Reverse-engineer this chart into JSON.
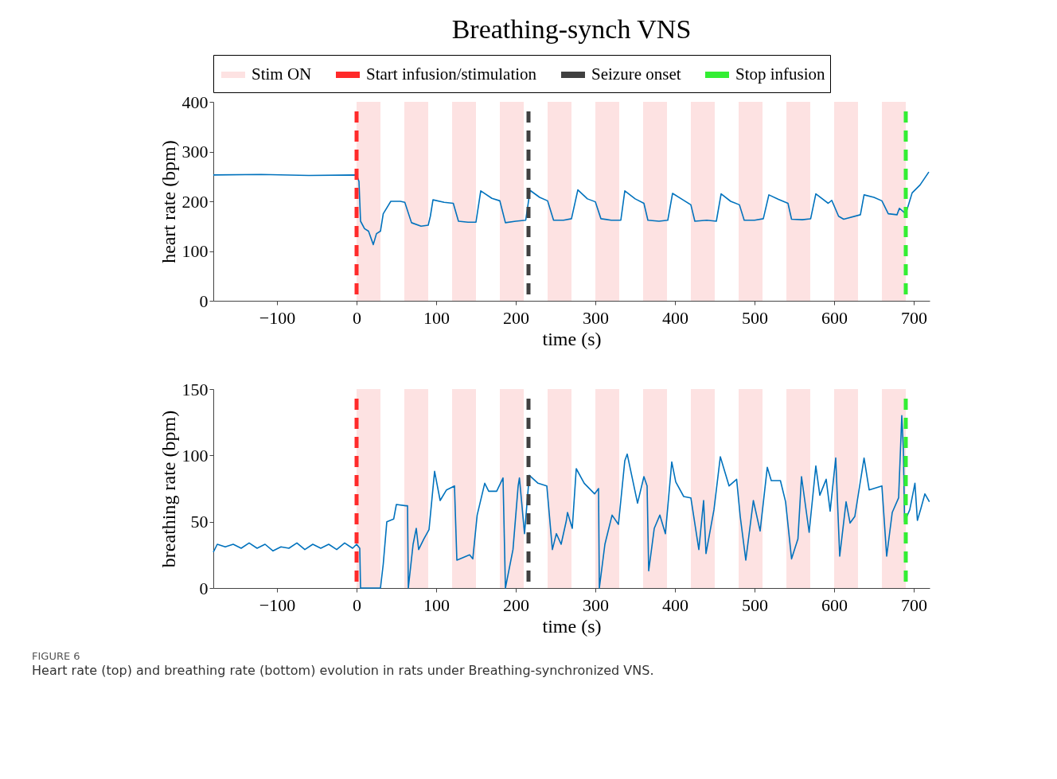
{
  "chart_data": [
    {
      "type": "line",
      "title": "Breathing-synch VNS",
      "xlabel": "time (s)",
      "ylabel": "heart rate (bpm)",
      "x": [
        -180,
        -120,
        -60,
        0,
        3,
        5,
        10,
        15,
        21,
        25,
        30,
        33.5,
        43,
        55,
        60.6,
        69,
        81,
        90,
        92.7,
        96,
        110,
        121.5,
        128,
        140,
        150,
        156,
        170,
        180,
        187,
        200,
        212.5,
        218,
        230,
        240,
        247.5,
        260,
        270,
        278,
        290,
        300,
        307,
        320,
        332,
        337,
        350,
        361,
        366,
        380,
        391,
        397,
        410,
        420,
        425,
        440,
        452,
        458,
        470,
        481,
        487,
        500,
        511,
        518,
        530,
        542,
        546.5,
        560,
        570.5,
        577,
        592.5,
        597,
        605.6,
        612,
        633,
        637.6,
        650,
        660,
        668,
        679,
        682,
        690,
        698,
        708,
        719
      ],
      "series": [
        {
          "color": "#0072bd",
          "values": [
            253,
            254,
            252,
            253,
            240,
            160,
            145,
            140,
            113,
            135,
            140,
            175,
            200,
            200,
            198,
            157,
            150,
            152,
            170,
            203,
            198,
            196,
            160,
            158,
            158,
            221,
            206,
            201,
            157,
            160,
            162,
            222,
            208,
            201,
            162,
            162,
            165,
            223,
            205,
            199,
            165,
            162,
            162,
            221,
            205,
            196,
            162,
            160,
            162,
            216,
            203,
            193,
            160,
            162,
            160,
            215,
            200,
            193,
            162,
            162,
            165,
            213,
            204,
            196,
            164,
            163,
            165,
            215,
            196,
            202,
            170,
            164,
            173,
            213,
            208,
            201,
            175,
            173,
            186,
            175,
            217,
            233,
            259
          ]
        }
      ],
      "xlim": [
        -180,
        720
      ],
      "xticks": [
        -100,
        0,
        100,
        200,
        300,
        400,
        500,
        600,
        700
      ],
      "ylim": [
        0,
        400
      ],
      "yticks": [
        0,
        100,
        200,
        300,
        400
      ],
      "bands": [
        {
          "axis": "x",
          "from": 0,
          "to": 30,
          "label": "Stim ON",
          "color": "#fde2e2"
        },
        {
          "axis": "x",
          "from": 60,
          "to": 90,
          "color": "#fde2e2"
        },
        {
          "axis": "x",
          "from": 120,
          "to": 150,
          "color": "#fde2e2"
        },
        {
          "axis": "x",
          "from": 180,
          "to": 210,
          "color": "#fde2e2"
        },
        {
          "axis": "x",
          "from": 240,
          "to": 270,
          "color": "#fde2e2"
        },
        {
          "axis": "x",
          "from": 300,
          "to": 330,
          "color": "#fde2e2"
        },
        {
          "axis": "x",
          "from": 360,
          "to": 390,
          "color": "#fde2e2"
        },
        {
          "axis": "x",
          "from": 420,
          "to": 450,
          "color": "#fde2e2"
        },
        {
          "axis": "x",
          "from": 480,
          "to": 510,
          "color": "#fde2e2"
        },
        {
          "axis": "x",
          "from": 540,
          "to": 570,
          "color": "#fde2e2"
        },
        {
          "axis": "x",
          "from": 600,
          "to": 630,
          "color": "#fde2e2"
        },
        {
          "axis": "x",
          "from": 660,
          "to": 690,
          "color": "#fde2e2"
        }
      ],
      "ref_lines": [
        {
          "axis": "x",
          "value": 0,
          "label": "Start infusion/stimulation",
          "color": "#ff2a2a",
          "line_style": "dashed"
        },
        {
          "axis": "x",
          "value": 216,
          "label": "Seizure onset",
          "color": "#404040",
          "line_style": "dashed"
        },
        {
          "axis": "x",
          "value": 690,
          "label": "Stop infusion",
          "color": "#33ee33",
          "line_style": "dashed"
        }
      ],
      "legend": "top",
      "grid": false
    },
    {
      "type": "line",
      "xlabel": "time (s)",
      "ylabel": "breathing rate (bpm)",
      "x": [
        -180,
        -175,
        -165,
        -155,
        -145,
        -135,
        -125,
        -115,
        -105,
        -95,
        -85,
        -75,
        -65,
        -55,
        -45,
        -35,
        -25,
        -15,
        -5,
        0,
        4,
        5,
        30,
        33.5,
        38,
        46.6,
        50,
        62,
        64,
        65,
        71,
        75,
        78,
        84.5,
        91,
        98,
        105,
        113,
        123,
        126,
        142,
        146,
        151.5,
        161,
        166,
        176,
        184,
        187,
        196.5,
        203,
        204.6,
        211,
        217,
        228,
        239,
        246,
        251,
        257,
        263.6,
        265,
        271,
        276,
        286,
        299,
        304,
        305,
        312,
        321,
        329,
        337,
        340,
        353,
        361,
        365,
        367,
        374,
        381,
        388,
        396,
        401,
        411,
        420,
        430,
        436,
        439,
        449,
        457,
        468,
        477.5,
        482,
        489,
        498.5,
        507,
        516,
        521,
        532.5,
        539,
        546.5,
        554.5,
        559,
        568.6,
        577,
        582,
        590,
        595,
        602,
        607,
        615,
        620,
        626,
        637.6,
        644,
        660,
        666,
        673,
        681,
        685,
        687,
        688.5,
        695,
        701.5,
        704.6,
        709,
        714,
        719.7
      ],
      "series": [
        {
          "color": "#0072bd",
          "values": [
            27,
            33,
            31,
            33,
            30,
            34,
            30,
            33,
            28,
            31,
            30,
            34,
            29,
            33,
            30,
            33,
            29,
            34,
            30,
            33,
            30,
            0,
            0,
            18,
            50,
            52,
            63,
            62,
            62,
            0,
            33,
            45,
            29,
            37,
            44,
            88,
            66,
            74,
            77,
            21,
            25,
            22,
            55,
            79,
            73,
            73,
            83,
            0,
            29,
            77,
            83,
            41,
            85,
            79,
            77,
            29,
            41,
            33,
            51,
            57,
            45,
            90,
            79,
            71,
            75,
            0,
            33,
            55,
            48,
            96,
            101,
            64,
            84,
            77,
            13,
            45,
            55,
            41,
            95,
            80,
            69,
            68,
            29,
            66,
            26,
            59,
            99,
            77,
            82,
            54,
            21,
            66,
            43,
            91,
            81,
            81,
            65,
            22,
            37,
            84,
            42,
            92,
            70,
            82,
            58,
            98,
            24,
            65,
            49,
            54,
            98,
            74,
            77,
            24,
            57,
            68,
            130,
            104,
            50,
            59,
            79,
            51,
            60,
            71,
            65
          ]
        }
      ],
      "xlim": [
        -180,
        720
      ],
      "xticks": [
        -100,
        0,
        100,
        200,
        300,
        400,
        500,
        600,
        700
      ],
      "ylim": [
        0,
        150
      ],
      "yticks": [
        0,
        50,
        100,
        150
      ],
      "bands": [
        {
          "axis": "x",
          "from": 0,
          "to": 30,
          "color": "#fde2e2"
        },
        {
          "axis": "x",
          "from": 60,
          "to": 90,
          "color": "#fde2e2"
        },
        {
          "axis": "x",
          "from": 120,
          "to": 150,
          "color": "#fde2e2"
        },
        {
          "axis": "x",
          "from": 180,
          "to": 210,
          "color": "#fde2e2"
        },
        {
          "axis": "x",
          "from": 240,
          "to": 270,
          "color": "#fde2e2"
        },
        {
          "axis": "x",
          "from": 300,
          "to": 330,
          "color": "#fde2e2"
        },
        {
          "axis": "x",
          "from": 360,
          "to": 390,
          "color": "#fde2e2"
        },
        {
          "axis": "x",
          "from": 420,
          "to": 450,
          "color": "#fde2e2"
        },
        {
          "axis": "x",
          "from": 480,
          "to": 510,
          "color": "#fde2e2"
        },
        {
          "axis": "x",
          "from": 540,
          "to": 570,
          "color": "#fde2e2"
        },
        {
          "axis": "x",
          "from": 600,
          "to": 630,
          "color": "#fde2e2"
        },
        {
          "axis": "x",
          "from": 660,
          "to": 690,
          "color": "#fde2e2"
        }
      ],
      "ref_lines": [
        {
          "axis": "x",
          "value": 0,
          "color": "#ff2a2a",
          "line_style": "dashed"
        },
        {
          "axis": "x",
          "value": 216,
          "color": "#404040",
          "line_style": "dashed"
        },
        {
          "axis": "x",
          "value": 690,
          "color": "#33ee33",
          "line_style": "dashed"
        }
      ],
      "legend": false,
      "grid": false,
      "annotations": [
        "FIGURE 6",
        "Heart rate (top) and breathing rate (bottom) evolution in rats under Breathing-synchronized VNS."
      ]
    }
  ]
}
